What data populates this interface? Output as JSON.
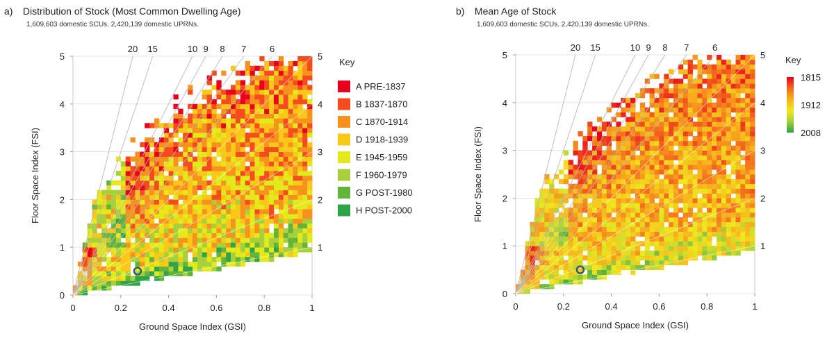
{
  "chart_data": [
    {
      "type": "heatmap",
      "panel_label": "a)",
      "title": "Distribution of Stock (Most Common Dwelling Age)",
      "subtitle": "1,609,603 domestic SCUs. 2,420,139 domestic UPRNs.",
      "xlabel": "Ground Space Index (GSI)",
      "ylabel": "Floor Space Index (FSI)",
      "xlim": [
        0,
        1
      ],
      "ylim": [
        0,
        5
      ],
      "x_ticks": [
        "0",
        "0.2",
        "0.4",
        "0.6",
        "0.8",
        "1"
      ],
      "y_ticks": [
        "0",
        "1",
        "2",
        "3",
        "4",
        "5"
      ],
      "right_ticks": [
        "1",
        "2",
        "3",
        "4",
        "5"
      ],
      "storey_lines": [
        "20",
        "15",
        "10",
        "9",
        "8",
        "7",
        "6"
      ],
      "storey_values": [
        20,
        15,
        10,
        9,
        8,
        7,
        6
      ],
      "reference_point": {
        "gsi": 0.27,
        "fsi": 0.5
      },
      "legend_title": "Key",
      "legend": [
        {
          "label": "A PRE-1837",
          "color": "#e8001c"
        },
        {
          "label": "B 1837-1870",
          "color": "#f44c1e"
        },
        {
          "label": "C 1870-1914",
          "color": "#f7921e"
        },
        {
          "label": "D 1918-1939",
          "color": "#f9c818"
        },
        {
          "label": "E 1945-1959",
          "color": "#e3ea1c"
        },
        {
          "label": "F 1960-1979",
          "color": "#a7d03a"
        },
        {
          "label": "G POST-1980",
          "color": "#62b43b"
        },
        {
          "label": "H POST-2000",
          "color": "#2ea34a"
        }
      ]
    },
    {
      "type": "heatmap",
      "panel_label": "b)",
      "title": "Mean Age of Stock",
      "subtitle": "1,609,603 domestic SCUs. 2,420,139 domestic UPRNs.",
      "xlabel": "Ground Space Index (GSI)",
      "ylabel": "Floor Space Index (FSI)",
      "xlim": [
        0,
        1
      ],
      "ylim": [
        0,
        5
      ],
      "x_ticks": [
        "0",
        "0.2",
        "0.4",
        "0.6",
        "0.8",
        "1"
      ],
      "y_ticks": [
        "0",
        "1",
        "2",
        "3",
        "4",
        "5"
      ],
      "right_ticks": [
        "1",
        "2",
        "3",
        "4",
        "5"
      ],
      "storey_lines": [
        "20",
        "15",
        "10",
        "9",
        "8",
        "7",
        "6"
      ],
      "storey_values": [
        20,
        15,
        10,
        9,
        8,
        7,
        6
      ],
      "reference_point": {
        "gsi": 0.27,
        "fsi": 0.5
      },
      "legend_title": "Key",
      "colorbar_labels": [
        "1815",
        "1912",
        "2008"
      ],
      "colorbar_range": [
        1815,
        2008
      ],
      "colorbar_colors": [
        "#e8001c",
        "#f46a1e",
        "#f7b21e",
        "#f0e81e",
        "#a7d03a",
        "#2ea34a"
      ]
    }
  ]
}
